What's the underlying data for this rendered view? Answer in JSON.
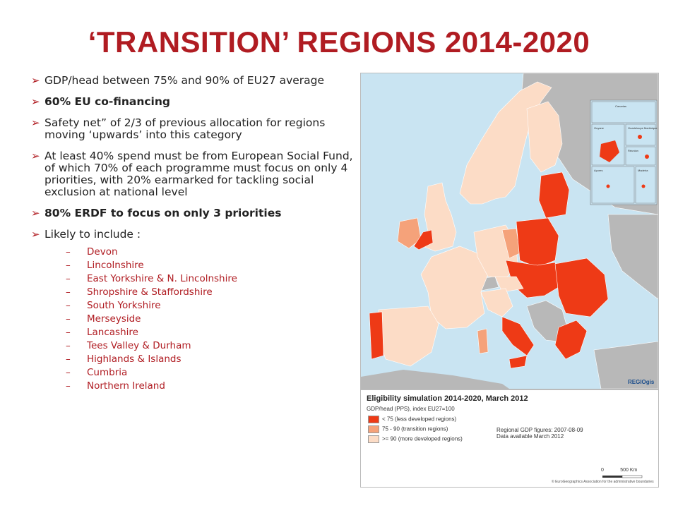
{
  "title": "‘TRANSITION’ REGIONS 2014-2020",
  "bullets": [
    {
      "text": "GDP/head between 75% and 90% of EU27 average",
      "bold": false
    },
    {
      "text": "60% EU co-financing",
      "bold": true
    },
    {
      "text": "Safety net” of 2/3 of previous allocation for regions moving ‘upwards’ into this category",
      "bold": false
    },
    {
      "text": "At least 40% spend must be from European Social Fund, of which 70% of each programme must focus on only 4 priorities, with 20% earmarked for tackling social exclusion at national level",
      "bold": false
    },
    {
      "text": "80% ERDF to focus on only 3 priorities",
      "bold": true
    },
    {
      "text": "Likely to include :",
      "bold": false
    }
  ],
  "regions": [
    "Devon",
    "Lincolnshire",
    "East Yorkshire & N. Lincolnshire",
    "Shropshire & Staffordshire",
    "South Yorkshire",
    "Merseyside",
    "Lancashire",
    "Tees Valley & Durham",
    "Highlands & Islands",
    "Cumbria",
    "Northern Ireland"
  ],
  "map": {
    "inset_labels": [
      "Canarias",
      "Guyane",
      "Guadeloupe Martinique",
      "Réunion",
      "Açores",
      "Madeira"
    ],
    "brand": "REGIOgis"
  },
  "legend": {
    "title": "Eligibility simulation 2014-2020, March 2012",
    "subtitle": "GDP/head (PPS), index EU27=100",
    "items": [
      {
        "label": "< 75 (less developed regions)",
        "color": "#ee3a16"
      },
      {
        "label": "75 - 90 (transition regions)",
        "color": "#f5a27a"
      },
      {
        "label": ">= 90 (more developed regions)",
        "color": "#fcdcc6"
      }
    ],
    "note1": "Regional GDP figures: 2007-08-09",
    "note2": "Data available March 2012",
    "scale_left": "0",
    "scale_right": "500 Km",
    "copyright": "© EuroGeographics Association for the administrative boundaries"
  },
  "colors": {
    "accent": "#b01c22",
    "less_developed": "#ee3a16",
    "transition": "#f5a27a",
    "more_developed": "#fcdcc6",
    "non_eu": "#b8b8b8",
    "sea": "#c9e4f2"
  }
}
